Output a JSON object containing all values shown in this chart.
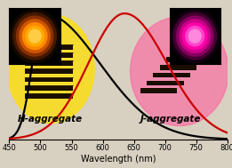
{
  "xlim": [
    450,
    800
  ],
  "ylim": [
    0,
    1.08
  ],
  "xlabel": "Wavelength (nm)",
  "xticks": [
    450,
    500,
    550,
    600,
    650,
    700,
    750,
    800
  ],
  "black_peak": 505,
  "red_peak": 635,
  "black_color": "#000000",
  "red_color": "#cc0000",
  "bg_color": "#d8d0c0",
  "h_agg_label": "H-aggregate",
  "j_agg_label": "J-aggregate",
  "h_glow_color": "#ffe000",
  "j_glow_color": "#ff60a0",
  "xlabel_fontsize": 7,
  "tick_fontsize": 6,
  "label_fontsize": 7.5,
  "lw": 1.6
}
